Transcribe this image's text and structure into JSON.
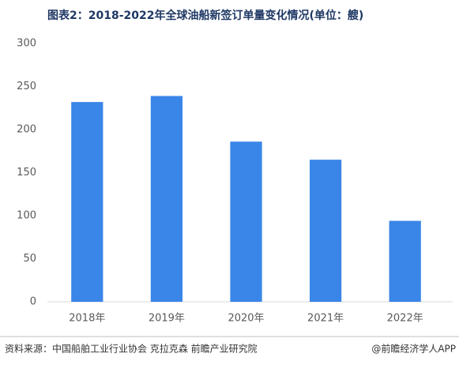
{
  "chart_data": {
    "type": "bar",
    "title": "图表2：2018-2022年全球油船新签订单量变化情况(单位：艘)",
    "categories": [
      "2018年",
      "2019年",
      "2020年",
      "2021年",
      "2022年"
    ],
    "values": [
      232,
      239,
      186,
      165,
      94
    ],
    "color": "#3a86e8",
    "ylim": [
      0,
      300
    ],
    "yticks": [
      0,
      50,
      100,
      150,
      200,
      250,
      300
    ],
    "grid": false,
    "source": "资料来源：中国船舶工业行业协会 克拉克森 前瞻产业研究院",
    "credit": "@前瞻经济学人APP"
  }
}
